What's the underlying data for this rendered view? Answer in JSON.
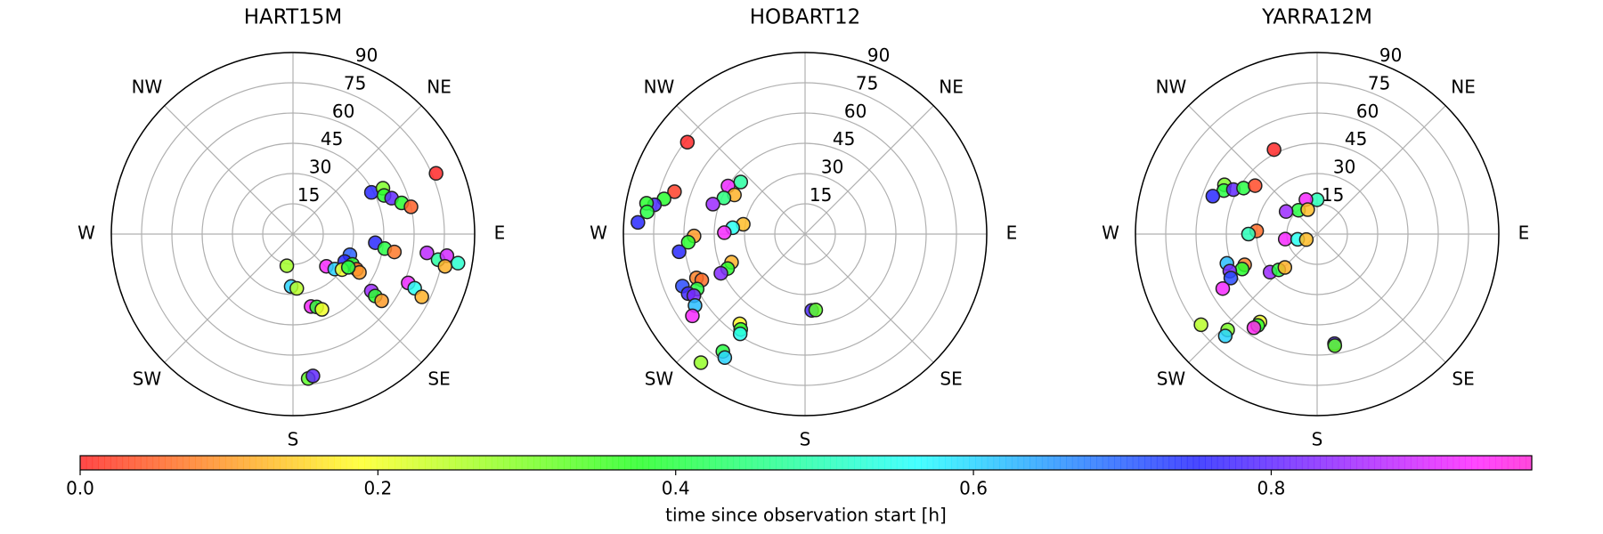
{
  "chart_data": [
    {
      "type": "scatter",
      "title": "HART15M",
      "xticks": [
        {
          "value": 0,
          "label": null
        },
        {
          "value": 45,
          "label": "NE"
        },
        {
          "value": 90,
          "label": "E"
        },
        {
          "value": 135,
          "label": "SE"
        },
        {
          "value": 180,
          "label": "S"
        },
        {
          "value": 225,
          "label": "SW"
        },
        {
          "value": 270,
          "label": "W"
        },
        {
          "value": 315,
          "label": "NW"
        }
      ],
      "ylim": [
        0,
        90
      ],
      "yticks": [
        15,
        30,
        45,
        60,
        75,
        90
      ],
      "x": [
        62,
        63,
        67,
        70,
        74,
        77,
        67,
        96,
        99,
        100,
        98,
        100,
        98,
        102,
        100,
        126,
        127,
        127,
        113,
        114,
        116,
        110,
        118,
        117,
        119,
        120,
        134,
        130,
        126,
        121,
        191,
        182,
        176,
        166,
        162,
        159,
        174,
        172
      ],
      "values": [
        44,
        50,
        49,
        52,
        56,
        60,
        77,
        41,
        46,
        51,
        67,
        73,
        77,
        77,
        83,
        48,
        51,
        55,
        62,
        66,
        71,
        30,
        29,
        33,
        36,
        38,
        23,
        27,
        30,
        32,
        16,
        26,
        27,
        37,
        38,
        40,
        72,
        71
      ],
      "c": [
        0.75,
        0.3,
        0.38,
        0.8,
        0.38,
        0.05,
        0.0,
        0.75,
        0.4,
        0.07,
        0.88,
        0.48,
        0.9,
        0.12,
        0.52,
        0.85,
        0.38,
        0.1,
        0.92,
        0.55,
        0.12,
        0.7,
        0.75,
        0.38,
        0.05,
        0.1,
        0.93,
        0.6,
        0.2,
        0.4,
        0.27,
        0.6,
        0.25,
        0.93,
        0.38,
        0.2,
        0.33,
        0.8
      ]
    },
    {
      "type": "scatter",
      "title": "HOBART12",
      "xticks": [
        {
          "value": 0,
          "label": null
        },
        {
          "value": 45,
          "label": "NE"
        },
        {
          "value": 90,
          "label": "E"
        },
        {
          "value": 135,
          "label": "SE"
        },
        {
          "value": 180,
          "label": "S"
        },
        {
          "value": 225,
          "label": "SW"
        },
        {
          "value": 270,
          "label": "W"
        },
        {
          "value": 315,
          "label": "NW"
        }
      ],
      "ylim": [
        0,
        90
      ],
      "yticks": [
        15,
        30,
        45,
        60,
        75,
        90
      ],
      "x": [
        308,
        288,
        284,
        281,
        281,
        278,
        274,
        309,
        302,
        299,
        294,
        288,
        279,
        275,
        271,
        269,
        266,
        262,
        249,
        246,
        245,
        248,
        246,
        247,
        243,
        243,
        241,
        237,
        234,
        216,
        214,
        213,
        215,
        213,
        219,
        175,
        172
      ],
      "values": [
        74,
        68,
        72,
        76,
        80,
        79,
        83,
        41,
        45,
        40,
        44,
        48,
        31,
        36,
        40,
        55,
        58,
        63,
        39,
        42,
        46,
        58,
        56,
        66,
        60,
        65,
        63,
        65,
        69,
        55,
        57,
        59,
        71,
        73,
        82,
        38,
        38
      ],
      "c": [
        0.0,
        0.02,
        0.38,
        0.78,
        0.38,
        0.4,
        0.75,
        0.48,
        0.92,
        0.12,
        0.45,
        0.85,
        0.13,
        0.55,
        0.93,
        0.1,
        0.38,
        0.75,
        0.12,
        0.38,
        0.83,
        0.08,
        0.06,
        0.72,
        0.4,
        0.77,
        0.82,
        0.62,
        0.93,
        0.18,
        0.38,
        0.55,
        0.4,
        0.6,
        0.28,
        0.78,
        0.33
      ]
    },
    {
      "type": "scatter",
      "title": "YARRA12M",
      "xticks": [
        {
          "value": 0,
          "label": null
        },
        {
          "value": 45,
          "label": "NE"
        },
        {
          "value": 90,
          "label": "E"
        },
        {
          "value": 135,
          "label": "SE"
        },
        {
          "value": 180,
          "label": "S"
        },
        {
          "value": 225,
          "label": "SW"
        },
        {
          "value": 270,
          "label": "W"
        },
        {
          "value": 315,
          "label": "NW"
        }
      ],
      "ylim": [
        0,
        90
      ],
      "yticks": [
        15,
        30,
        45,
        60,
        75,
        90
      ],
      "x": [
        333,
        298,
        295,
        290,
        298,
        302,
        308,
        0,
        342,
        322,
        339,
        306,
        273,
        270,
        261,
        255,
        243,
        247,
        245,
        252,
        247,
        243,
        240,
        231,
        227,
        224,
        232,
        223,
        222,
        213,
        213,
        214,
        171,
        171
      ],
      "values": [
        47,
        52,
        51,
        55,
        47,
        43,
        39,
        17,
        18,
        15,
        13,
        19,
        30,
        34,
        16,
        10,
        6,
        39,
        41,
        47,
        47,
        48,
        54,
        30,
        26,
        23,
        73,
        65,
        68,
        52,
        54,
        56,
        55,
        56
      ],
      "c": [
        0.0,
        0.3,
        0.4,
        0.75,
        0.8,
        0.4,
        0.03,
        0.5,
        0.93,
        0.4,
        0.13,
        0.85,
        0.06,
        0.5,
        0.93,
        0.55,
        0.13,
        0.08,
        0.38,
        0.62,
        0.82,
        0.72,
        0.93,
        0.85,
        0.4,
        0.12,
        0.25,
        0.3,
        0.6,
        0.2,
        0.38,
        0.95,
        0.78,
        0.33
      ]
    },
    {
      "type": "colorbar",
      "label": "time since observation start [h]",
      "clim": [
        0,
        0.975
      ],
      "ticks": [
        {
          "value": 0,
          "label": "0.0"
        },
        0.2,
        0.4,
        0.6,
        0.8
      ]
    }
  ]
}
